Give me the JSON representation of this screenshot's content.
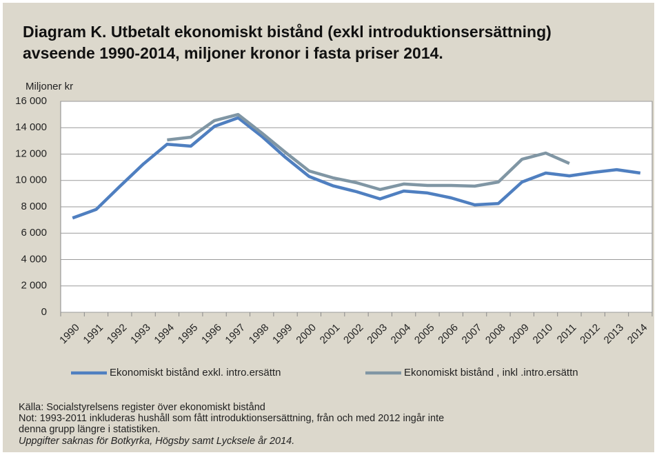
{
  "chart_data": {
    "type": "line",
    "title_lines": [
      "Diagram K. Utbetalt ekonomiskt bistånd (exkl introduktionsersättning)",
      "avseende 1990-2014, miljoner kronor i fasta priser 2014."
    ],
    "y_label": "Miljoner kr",
    "categories": [
      "1990",
      "1991",
      "1992",
      "1993",
      "1994",
      "1995",
      "1996",
      "1997",
      "1998",
      "1999",
      "2000",
      "2001",
      "2002",
      "2003",
      "2004",
      "2005",
      "2006",
      "2007",
      "2008",
      "2009",
      "2010",
      "2011",
      "2012",
      "2013",
      "2014"
    ],
    "series": [
      {
        "name": "Ekonomiskt bistånd exkl. intro.ersättn",
        "color": "#4f7fc0",
        "values": [
          7150,
          7800,
          9550,
          11250,
          12750,
          12600,
          14100,
          14750,
          13350,
          11750,
          10300,
          9600,
          9150,
          8600,
          9200,
          9050,
          8680,
          8150,
          8250,
          9880,
          10560,
          10350,
          10610,
          10820,
          10560
        ]
      },
      {
        "name": "Ekonomiskt bistånd , inkl .intro.ersättn",
        "color": "#8096a4",
        "values": [
          null,
          null,
          null,
          null,
          13070,
          13280,
          14540,
          15000,
          13600,
          12130,
          10720,
          10200,
          9830,
          9310,
          9730,
          9620,
          9620,
          9570,
          9880,
          11610,
          12080,
          11290,
          null,
          null,
          null
        ]
      }
    ],
    "ylim": [
      0,
      16000
    ],
    "yticks": [
      0,
      {
        "value": 2000,
        "label": "2 000"
      },
      {
        "value": 4000,
        "label": "4 000"
      },
      {
        "value": 6000,
        "label": "6 000"
      },
      {
        "value": 8000,
        "label": "8 000"
      },
      {
        "value": 10000,
        "label": "10 000"
      },
      {
        "value": 12000,
        "label": "12 000"
      },
      {
        "value": 14000,
        "label": "14 000"
      },
      {
        "value": 16000,
        "label": "16 000"
      }
    ],
    "grid": true,
    "legend": "bottom",
    "notes": [
      "Källa: Socialstyrelsens register över ekonomiskt bistånd",
      "Not: 1993-2011 inkluderas hushåll som fått introduktionsersättning, från och med 2012 ingår inte",
      "denna grupp längre i statistiken.",
      "Uppgifter saknas för Botkyrka, Högsby samt Lycksele år 2014."
    ]
  }
}
